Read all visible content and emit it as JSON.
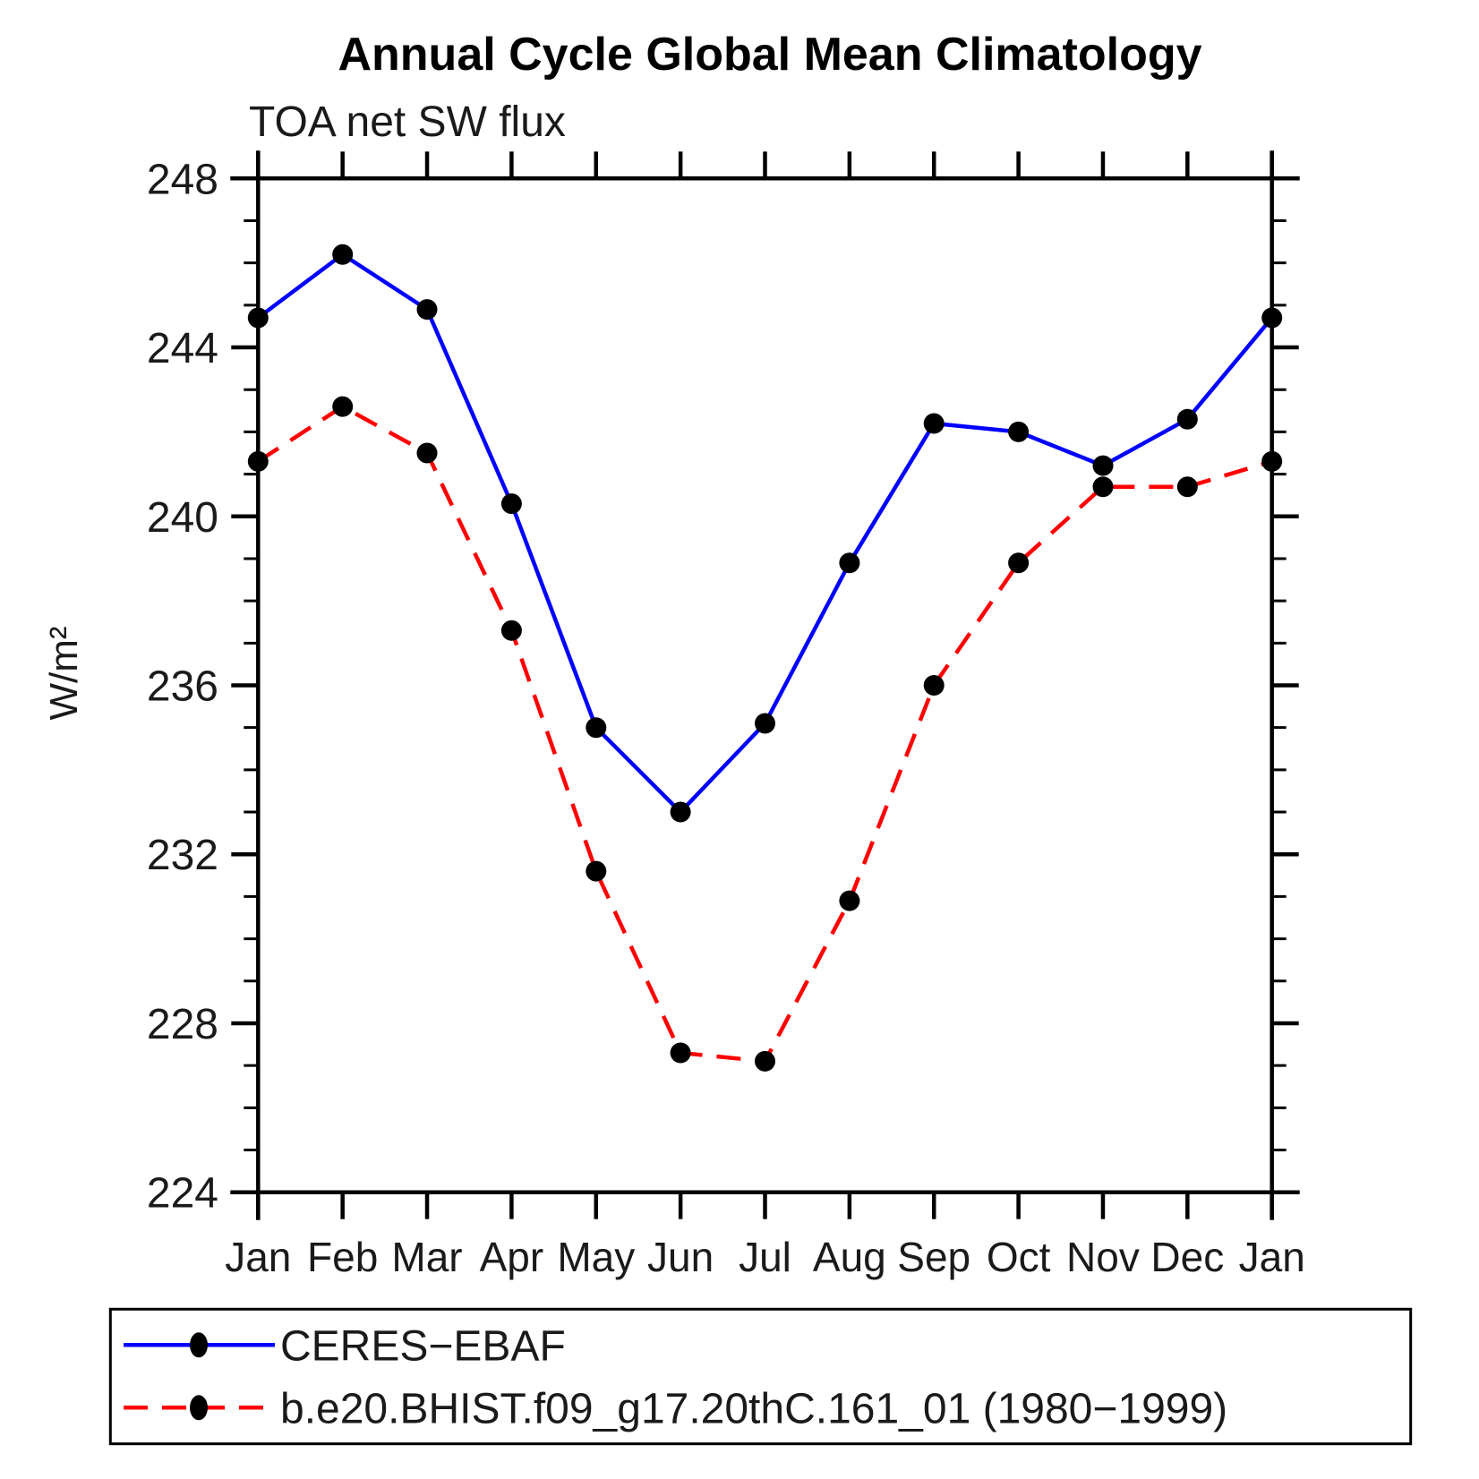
{
  "chart_data": {
    "type": "line",
    "title": "Annual Cycle Global Mean Climatology",
    "subtitle": "TOA net SW flux",
    "ylabel": "W/m²",
    "xlabel": "",
    "categories": [
      "Jan",
      "Feb",
      "Mar",
      "Apr",
      "May",
      "Jun",
      "Jul",
      "Aug",
      "Sep",
      "Oct",
      "Nov",
      "Dec",
      "Jan"
    ],
    "ylim": [
      224,
      248
    ],
    "yticks_major": [
      224,
      228,
      232,
      236,
      240,
      244,
      248
    ],
    "ytick_minor_step": 1,
    "grid": "off",
    "legend_position": "bottom-box",
    "marker_color": "#000000",
    "series": [
      {
        "name": "CERES−EBAF",
        "color": "#0000ff",
        "style": "solid",
        "marker": "circle",
        "values": [
          244.7,
          246.2,
          244.9,
          240.3,
          235.0,
          233.0,
          235.1,
          238.9,
          242.2,
          242.0,
          241.2,
          242.3,
          244.7
        ]
      },
      {
        "name": "b.e20.BHIST.f09_g17.20thC.161_01 (1980−1999)",
        "color": "#ff0000",
        "style": "dashed",
        "marker": "circle",
        "values": [
          241.3,
          242.6,
          241.5,
          237.3,
          231.6,
          227.3,
          227.1,
          230.9,
          236.0,
          238.9,
          240.7,
          240.7,
          241.3
        ]
      }
    ]
  }
}
